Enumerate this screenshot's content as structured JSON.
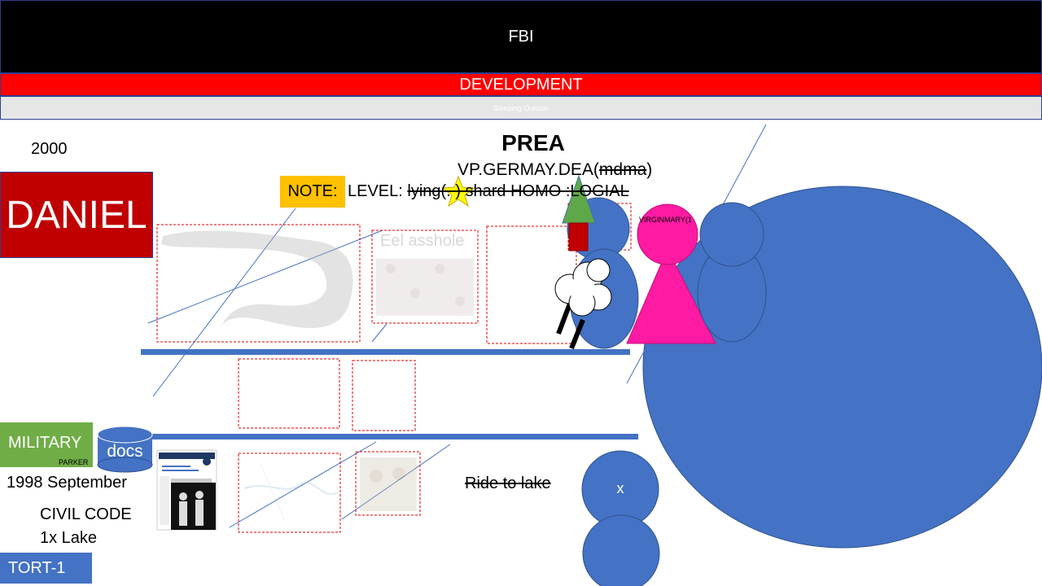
{
  "header": {
    "title": "FBI",
    "subtitle": "DEVELOPMENT",
    "caption": "Sleeping Outside"
  },
  "labels": {
    "year_top": "2000",
    "name_box": "DANIEL",
    "prea": "PREA",
    "vp_text": "VP.GERMAY.DEA(",
    "vp_strike": "mdma",
    "vp_close": ")",
    "note": "NOTE:",
    "level_prefix": "LEVEL: ",
    "level_strike": "lying(.  ) shard HOMO :LOGIAL",
    "eel_caption": "Eel asshole",
    "virgin": "VIRGINMARY(1",
    "military": "MILITARY",
    "parker": "PARKER",
    "docs": "docs",
    "year_bottom": "1998 September",
    "civil_code": "CIVIL CODE",
    "lake": "1x Lake",
    "tort": "TORT-1",
    "ride": "Ride to lake",
    "x_mark": "x"
  },
  "colors": {
    "blue": "#4472c4",
    "red": "#c00000",
    "bright_red": "#ff0000",
    "green": "#70ad47",
    "orange": "#ffc000",
    "magenta": "#ff1aa3",
    "yellow": "#ffff00",
    "tree_green": "#5fa84a",
    "trunk": "#c00000"
  }
}
